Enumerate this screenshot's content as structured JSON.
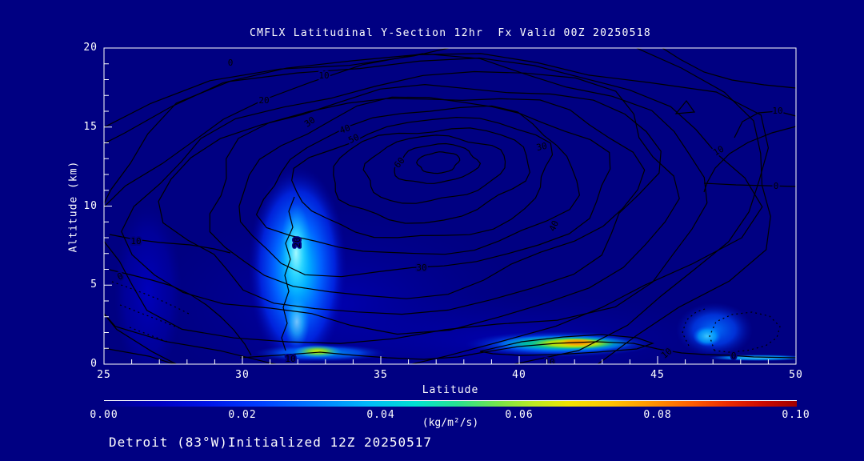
{
  "title": "CMFLX Latitudinal Y-Section 12hr  Fx Valid 00Z 20250518",
  "subtitle": "Detroit (83°W)Initialized 12Z 20250517",
  "axes": {
    "y_label": "Altitude (km)",
    "x_label": "Latitude",
    "y_ticks": [
      "20",
      "15",
      "10",
      "5",
      "0"
    ],
    "x_ticks": [
      "25",
      "30",
      "35",
      "40",
      "45",
      "50"
    ]
  },
  "colorbar": {
    "labels": [
      "0.00",
      "0.02",
      "0.04",
      "0.06",
      "0.08",
      "0.10"
    ],
    "units": "(kg/m²/s)",
    "min": 0.0,
    "max": 0.1,
    "stops": [
      "#000086 0%",
      "#0000c0 8%",
      "#0014e6 15%",
      "#0040ff 23%",
      "#0080ff 31%",
      "#00b8f8 38%",
      "#00e0d0 45%",
      "#28e090 51%",
      "#78e448 57%",
      "#bce822 62%",
      "#f0e400 67%",
      "#ffc400 73%",
      "#ff9400 79%",
      "#ff5c00 85%",
      "#ea2c00 90%",
      "#cc0a00 95%",
      "#a00000 100%"
    ]
  },
  "contour_labels": [
    "0",
    "10",
    "20",
    "30",
    "40",
    "50",
    "60",
    "30",
    "40",
    "30",
    "10",
    "10",
    "0",
    "10",
    "0",
    "20",
    "10",
    "10",
    "10",
    "0"
  ],
  "chart_data": {
    "type": "contour",
    "title": "CMFLX Latitudinal Y-Section 12hr  Fx Valid 00Z 20250518",
    "station": "Detroit (83°W)",
    "initialized": "12Z 20250517",
    "valid": "00Z 20250518",
    "forecast_hour": "12hr",
    "xlabel": "Latitude",
    "ylabel": "Altitude (km)",
    "xlim": [
      25,
      50
    ],
    "ylim": [
      0,
      20
    ],
    "x_ticks": [
      25,
      30,
      35,
      40,
      45,
      50
    ],
    "y_ticks": [
      0,
      5,
      10,
      15,
      20
    ],
    "line_contours": {
      "interval": 5,
      "labeled_levels": [
        0,
        10,
        20,
        30,
        40,
        50,
        60
      ],
      "negative_style": "dotted",
      "max_center": {
        "lat": 37.2,
        "alt_km": 12.6,
        "value": 60
      },
      "background_color": "#000082",
      "line_color": "#000000"
    },
    "shaded_field": {
      "units": "(kg/m²/s)",
      "scale": [
        0.0,
        0.1
      ],
      "colormap": "blue-cyan-green-yellow-orange-red",
      "features": [
        {
          "desc": "deep convective plume",
          "lat": 32,
          "alt_km": [
            0,
            10
          ],
          "peak_value": 0.045
        },
        {
          "desc": "surface hotspot below plume",
          "lat": 33,
          "alt_km": [
            0,
            1
          ],
          "peak_value": 0.055
        },
        {
          "desc": "low-level streak",
          "lat": [
            40.5,
            43.5
          ],
          "alt_km": [
            0.5,
            1.5
          ],
          "peak_value": 0.08
        },
        {
          "desc": "secondary low-level maximum",
          "lat": 47,
          "alt_km": [
            0.5,
            3
          ],
          "peak_value": 0.04
        },
        {
          "desc": "thin near-surface filament",
          "lat": [
            47.5,
            50
          ],
          "alt_km": [
            0.3,
            0.7
          ],
          "peak_value": 0.035
        },
        {
          "desc": "weak broad column",
          "lat": 26.5,
          "alt_km": [
            0,
            10
          ],
          "peak_value": 0.01
        }
      ]
    }
  }
}
